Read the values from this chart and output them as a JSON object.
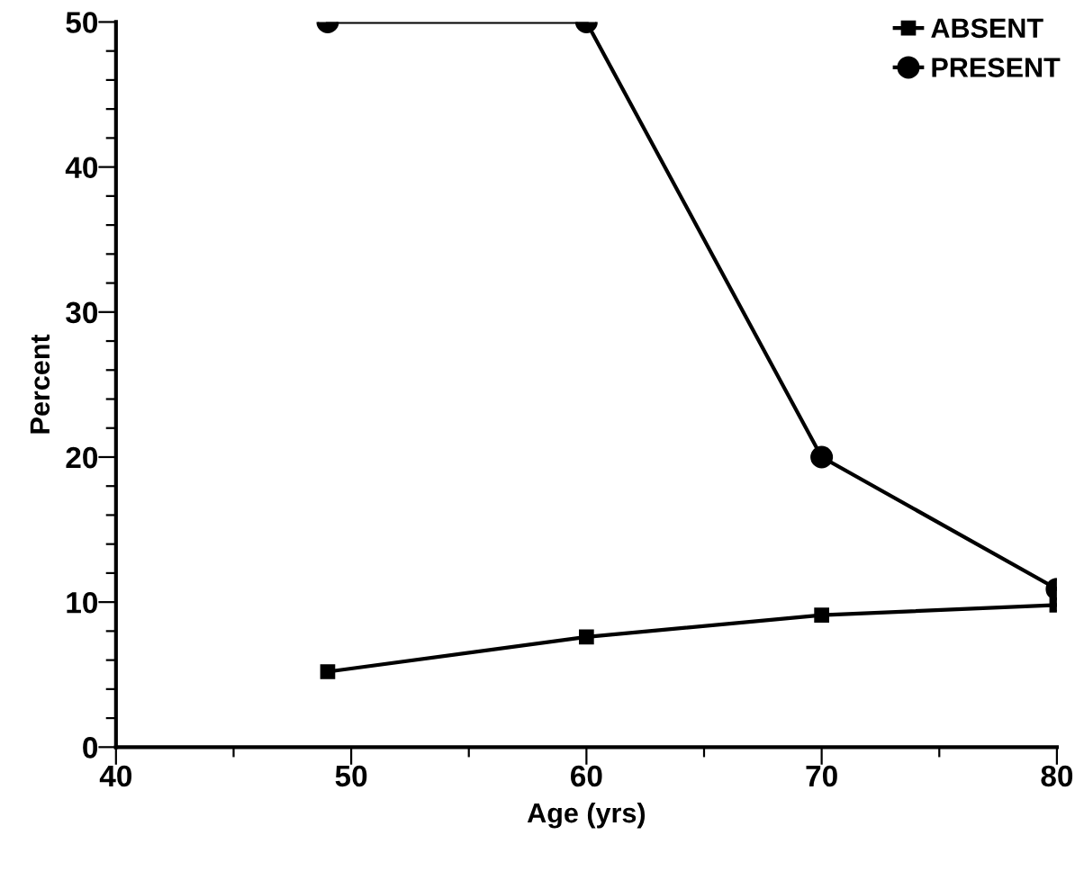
{
  "chart_data": {
    "type": "line",
    "xlabel": "Age (yrs)",
    "ylabel": "Percent",
    "xlim": [
      40,
      80
    ],
    "ylim": [
      0,
      50
    ],
    "xticks": [
      40,
      {
        "value": 45,
        "label": null
      },
      50,
      {
        "value": 55,
        "label": null
      },
      60,
      {
        "value": 65,
        "label": null
      },
      70,
      {
        "value": 75,
        "label": null
      },
      80
    ],
    "yticks": [
      0,
      {
        "value": 2,
        "label": null
      },
      {
        "value": 4,
        "label": null
      },
      {
        "value": 6,
        "label": null
      },
      {
        "value": 8,
        "label": null
      },
      10,
      {
        "value": 12,
        "label": null
      },
      {
        "value": 14,
        "label": null
      },
      {
        "value": 16,
        "label": null
      },
      {
        "value": 18,
        "label": null
      },
      20,
      {
        "value": 22,
        "label": null
      },
      {
        "value": 24,
        "label": null
      },
      {
        "value": 26,
        "label": null
      },
      {
        "value": 28,
        "label": null
      },
      30,
      {
        "value": 32,
        "label": null
      },
      {
        "value": 34,
        "label": null
      },
      {
        "value": 36,
        "label": null
      },
      {
        "value": 38,
        "label": null
      },
      40,
      {
        "value": 42,
        "label": null
      },
      {
        "value": 44,
        "label": null
      },
      {
        "value": 46,
        "label": null
      },
      {
        "value": 48,
        "label": null
      },
      50
    ],
    "x": [
      49,
      60,
      70,
      80
    ],
    "series": [
      {
        "name": "ABSENT",
        "color": "#000000",
        "marker": "square",
        "values": [
          5.2,
          7.6,
          9.1,
          9.8
        ]
      },
      {
        "name": "PRESENT",
        "color": "#000000",
        "marker": "circle",
        "values": [
          50,
          50,
          20,
          10.9
        ]
      }
    ],
    "line_style": "solid",
    "grid": false,
    "legend": "top right"
  }
}
